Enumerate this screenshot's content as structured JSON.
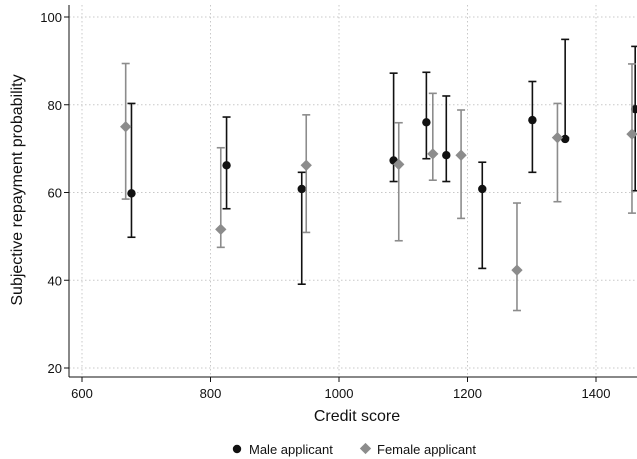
{
  "chart_data": {
    "type": "scatter",
    "xlabel": "Credit score",
    "ylabel": "Subjective repayment probability",
    "xlim": [
      585,
      1460
    ],
    "ylim": [
      17,
      103
    ],
    "xticks": [
      600,
      800,
      1000,
      1200,
      1400
    ],
    "yticks": [
      20,
      40,
      60,
      80,
      100
    ],
    "grid": true,
    "legend_position": "bottom",
    "series": [
      {
        "name": "Male applicant",
        "marker": "circle",
        "color": "#111111",
        "points": [
          {
            "x": 677,
            "y": 59.8,
            "lo": 49.8,
            "hi": 80.3
          },
          {
            "x": 825,
            "y": 66.2,
            "lo": 56.3,
            "hi": 77.2
          },
          {
            "x": 942,
            "y": 60.8,
            "lo": 39.1,
            "hi": 64.6
          },
          {
            "x": 1085,
            "y": 67.3,
            "lo": 62.5,
            "hi": 87.2
          },
          {
            "x": 1136,
            "y": 76.0,
            "lo": 67.7,
            "hi": 87.4
          },
          {
            "x": 1167,
            "y": 68.5,
            "lo": 62.5,
            "hi": 82.0
          },
          {
            "x": 1223,
            "y": 60.8,
            "lo": 42.7,
            "hi": 66.9
          },
          {
            "x": 1301,
            "y": 76.5,
            "lo": 64.6,
            "hi": 85.3
          },
          {
            "x": 1352,
            "y": 72.2,
            "lo": 72.5,
            "hi": 94.9
          },
          {
            "x": 1461,
            "y": 79.0,
            "lo": 60.4,
            "hi": 93.3
          }
        ]
      },
      {
        "name": "Female applicant",
        "marker": "diamond",
        "color": "#8c8c8c",
        "points": [
          {
            "x": 668,
            "y": 75.0,
            "lo": 58.5,
            "hi": 89.4
          },
          {
            "x": 816,
            "y": 51.6,
            "lo": 47.5,
            "hi": 70.2
          },
          {
            "x": 949,
            "y": 66.2,
            "lo": 50.9,
            "hi": 77.7
          },
          {
            "x": 1093,
            "y": 66.4,
            "lo": 49.0,
            "hi": 75.9
          },
          {
            "x": 1146,
            "y": 68.8,
            "lo": 62.8,
            "hi": 82.6
          },
          {
            "x": 1190,
            "y": 68.5,
            "lo": 54.1,
            "hi": 78.8
          },
          {
            "x": 1277,
            "y": 42.3,
            "lo": 33.1,
            "hi": 57.6
          },
          {
            "x": 1340,
            "y": 72.5,
            "lo": 57.9,
            "hi": 80.3
          },
          {
            "x": 1456,
            "y": 73.3,
            "lo": 55.3,
            "hi": 89.3
          }
        ]
      }
    ]
  },
  "legend": {
    "male_label": "Male applicant",
    "female_label": "Female applicant"
  }
}
